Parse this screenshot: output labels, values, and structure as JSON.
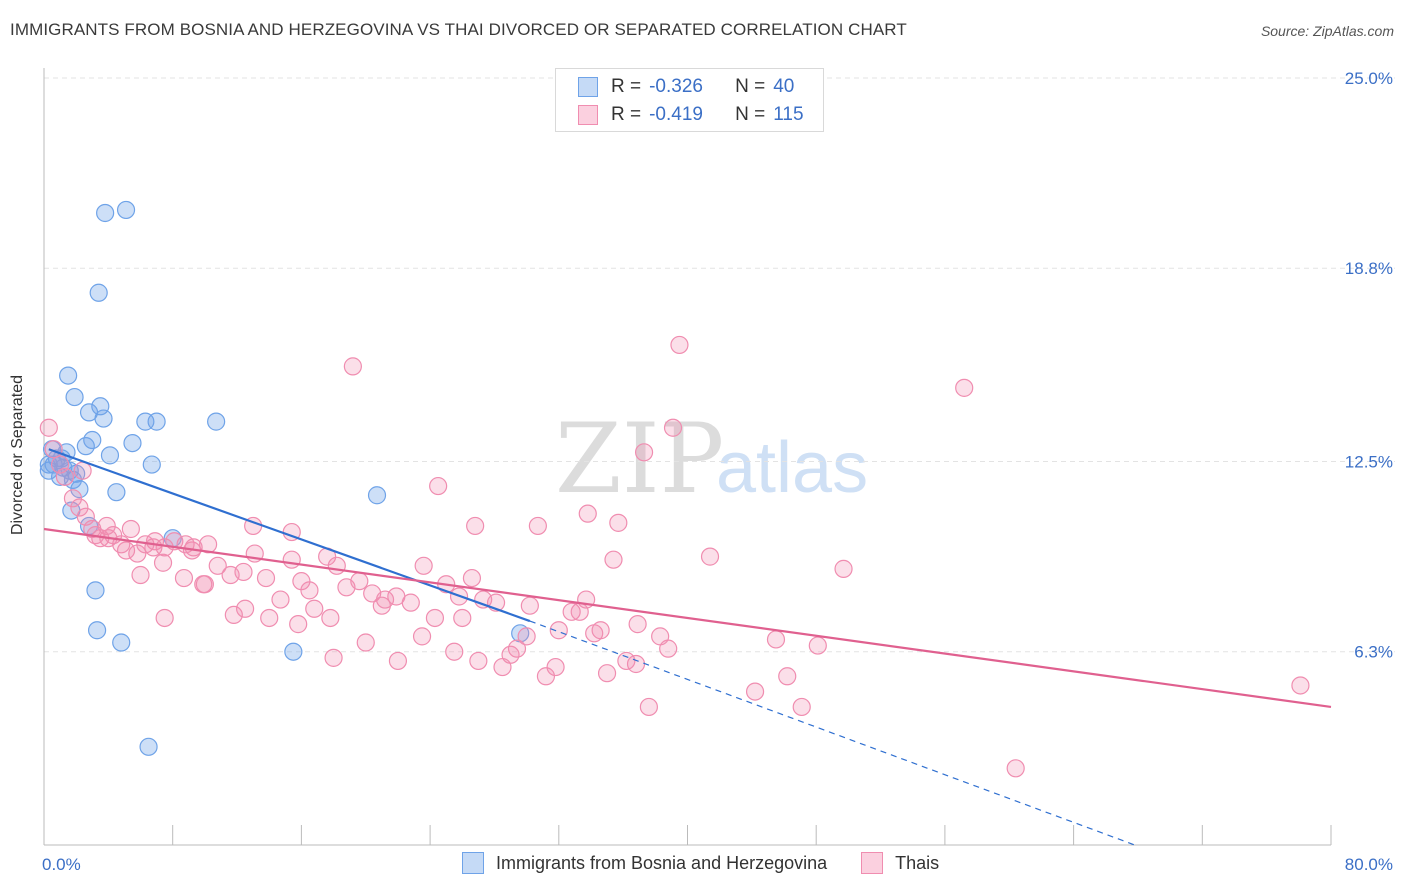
{
  "title": "IMMIGRANTS FROM BOSNIA AND HERZEGOVINA VS THAI DIVORCED OR SEPARATED CORRELATION CHART",
  "source": "Source: ZipAtlas.com",
  "watermark": {
    "zip": "ZIP",
    "atlas": "atlas"
  },
  "legend": {
    "series1": {
      "r_label": "R =",
      "r_value": "-0.326",
      "n_label": "N =",
      "n_value": "40"
    },
    "series2": {
      "r_label": "R =",
      "r_value": "-0.419",
      "n_label": "N =",
      "n_value": "115"
    }
  },
  "chart_data": {
    "type": "scatter",
    "xlabel": "",
    "ylabel": "Divorced or Separated",
    "xlim": [
      0,
      80
    ],
    "ylim": [
      0,
      25
    ],
    "x_tick_labels": [
      "0.0%",
      "80.0%"
    ],
    "y_ticks": [
      6.3,
      12.5,
      18.8,
      25.0
    ],
    "y_tick_labels": [
      "6.3%",
      "12.5%",
      "18.8%",
      "25.0%"
    ],
    "grid": true,
    "colors": {
      "series1": "#6fa3e8",
      "series2": "#f08db0",
      "line1": "#2f6fd0",
      "line2": "#e0608f"
    },
    "series": [
      {
        "name": "Immigrants from Bosnia and Herzegovina",
        "points": [
          [
            0.3,
            12.2
          ],
          [
            0.5,
            12.9
          ],
          [
            0.6,
            12.4
          ],
          [
            0.8,
            12.6
          ],
          [
            1.0,
            12.0
          ],
          [
            1.2,
            12.3
          ],
          [
            1.4,
            12.8
          ],
          [
            1.6,
            12.2
          ],
          [
            1.8,
            11.9
          ],
          [
            2.0,
            12.1
          ],
          [
            2.2,
            11.6
          ],
          [
            1.7,
            10.9
          ],
          [
            1.5,
            15.3
          ],
          [
            1.9,
            14.6
          ],
          [
            2.8,
            14.1
          ],
          [
            3.5,
            14.3
          ],
          [
            3.7,
            13.9
          ],
          [
            3.0,
            13.2
          ],
          [
            2.6,
            13.0
          ],
          [
            4.1,
            12.7
          ],
          [
            4.5,
            11.5
          ],
          [
            5.5,
            13.1
          ],
          [
            6.3,
            13.8
          ],
          [
            7.0,
            13.8
          ],
          [
            6.7,
            12.4
          ],
          [
            8.0,
            10.0
          ],
          [
            10.7,
            13.8
          ],
          [
            2.8,
            10.4
          ],
          [
            3.4,
            18.0
          ],
          [
            3.8,
            20.6
          ],
          [
            5.1,
            20.7
          ],
          [
            3.2,
            8.3
          ],
          [
            3.3,
            7.0
          ],
          [
            4.8,
            6.6
          ],
          [
            6.5,
            3.2
          ],
          [
            15.5,
            6.3
          ],
          [
            20.7,
            11.4
          ],
          [
            29.6,
            6.9
          ],
          [
            0.3,
            12.4
          ],
          [
            1.1,
            12.6
          ]
        ]
      },
      {
        "name": "Thais",
        "points": [
          [
            0.3,
            13.6
          ],
          [
            0.6,
            12.9
          ],
          [
            1.0,
            12.4
          ],
          [
            1.3,
            12.0
          ],
          [
            1.8,
            11.3
          ],
          [
            2.2,
            11.0
          ],
          [
            2.6,
            10.7
          ],
          [
            3.0,
            10.3
          ],
          [
            3.5,
            10.0
          ],
          [
            3.9,
            10.4
          ],
          [
            4.3,
            10.1
          ],
          [
            4.8,
            9.8
          ],
          [
            5.4,
            10.3
          ],
          [
            5.8,
            9.5
          ],
          [
            6.3,
            9.8
          ],
          [
            6.9,
            9.9
          ],
          [
            7.5,
            9.7
          ],
          [
            8.1,
            9.9
          ],
          [
            8.8,
            9.8
          ],
          [
            9.3,
            9.7
          ],
          [
            10.2,
            9.8
          ],
          [
            5.1,
            9.6
          ],
          [
            6.0,
            8.8
          ],
          [
            7.4,
            9.2
          ],
          [
            8.7,
            8.7
          ],
          [
            9.9,
            8.5
          ],
          [
            10.8,
            9.1
          ],
          [
            11.6,
            8.8
          ],
          [
            12.4,
            8.9
          ],
          [
            13.1,
            9.5
          ],
          [
            13.8,
            8.7
          ],
          [
            14.7,
            8.0
          ],
          [
            15.4,
            9.3
          ],
          [
            16.0,
            8.6
          ],
          [
            16.8,
            7.7
          ],
          [
            17.6,
            9.4
          ],
          [
            18.2,
            9.1
          ],
          [
            18.8,
            8.4
          ],
          [
            19.6,
            8.6
          ],
          [
            20.4,
            8.2
          ],
          [
            21.2,
            8.0
          ],
          [
            21.9,
            8.1
          ],
          [
            22.8,
            7.9
          ],
          [
            23.6,
            9.1
          ],
          [
            24.3,
            7.4
          ],
          [
            25.0,
            8.5
          ],
          [
            25.8,
            8.1
          ],
          [
            26.6,
            8.7
          ],
          [
            27.3,
            8.0
          ],
          [
            28.1,
            7.9
          ],
          [
            29.4,
            6.4
          ],
          [
            30.2,
            7.8
          ],
          [
            31.2,
            5.5
          ],
          [
            32.0,
            7.0
          ],
          [
            32.8,
            7.6
          ],
          [
            33.7,
            8.0
          ],
          [
            34.6,
            7.0
          ],
          [
            35.4,
            9.3
          ],
          [
            36.2,
            6.0
          ],
          [
            36.9,
            7.2
          ],
          [
            37.6,
            4.5
          ],
          [
            38.3,
            6.8
          ],
          [
            13.0,
            10.4
          ],
          [
            15.4,
            10.2
          ],
          [
            19.2,
            15.6
          ],
          [
            24.5,
            11.7
          ],
          [
            26.8,
            10.4
          ],
          [
            30.7,
            10.4
          ],
          [
            33.8,
            10.8
          ],
          [
            35.7,
            10.5
          ],
          [
            37.3,
            12.8
          ],
          [
            39.1,
            13.6
          ],
          [
            39.5,
            16.3
          ],
          [
            41.4,
            9.4
          ],
          [
            45.5,
            6.7
          ],
          [
            44.2,
            5.0
          ],
          [
            46.2,
            5.5
          ],
          [
            47.1,
            4.5
          ],
          [
            48.1,
            6.5
          ],
          [
            49.7,
            9.0
          ],
          [
            57.2,
            14.9
          ],
          [
            60.4,
            2.5
          ],
          [
            78.1,
            5.2
          ],
          [
            7.5,
            7.4
          ],
          [
            10.0,
            8.5
          ],
          [
            12.5,
            7.7
          ],
          [
            14.0,
            7.4
          ],
          [
            15.8,
            7.2
          ],
          [
            17.8,
            7.4
          ],
          [
            20.0,
            6.6
          ],
          [
            22.0,
            6.0
          ],
          [
            23.5,
            6.8
          ],
          [
            25.5,
            6.3
          ],
          [
            27.0,
            6.0
          ],
          [
            28.5,
            5.8
          ],
          [
            30.0,
            6.8
          ],
          [
            31.8,
            5.8
          ],
          [
            33.3,
            7.6
          ],
          [
            34.2,
            6.9
          ],
          [
            35.0,
            5.6
          ],
          [
            36.8,
            5.9
          ],
          [
            38.8,
            6.4
          ],
          [
            11.8,
            7.5
          ],
          [
            16.5,
            8.3
          ],
          [
            21.0,
            7.8
          ],
          [
            26.0,
            7.4
          ],
          [
            29.0,
            6.2
          ],
          [
            18.0,
            6.1
          ],
          [
            9.2,
            9.6
          ],
          [
            4.0,
            10.0
          ],
          [
            6.8,
            9.7
          ],
          [
            3.2,
            10.1
          ],
          [
            2.4,
            12.2
          ]
        ]
      }
    ],
    "trend_lines": [
      {
        "series": "Immigrants from Bosnia and Herzegovina",
        "x": [
          0.3,
          30.2
        ],
        "y": [
          12.9,
          7.3
        ],
        "dashed_extension_to": [
          67.8,
          0
        ]
      },
      {
        "series": "Thais",
        "x": [
          0,
          80
        ],
        "y": [
          10.3,
          4.5
        ]
      }
    ]
  },
  "bottom_legend": {
    "item1": "Immigrants from Bosnia and Herzegovina",
    "item2": "Thais"
  }
}
